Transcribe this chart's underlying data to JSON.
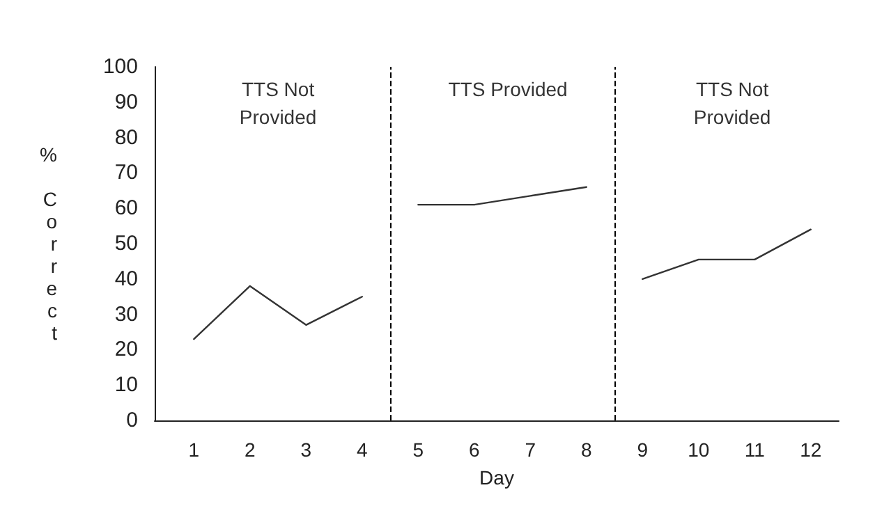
{
  "chart_data": {
    "type": "line",
    "xlabel": "Day",
    "ylabel": "% Correct",
    "xlim": [
      0.3,
      12.5
    ],
    "xticks": [
      1,
      2,
      3,
      4,
      5,
      6,
      7,
      8,
      9,
      10,
      11,
      12
    ],
    "ylim": [
      0,
      100
    ],
    "yticks": [
      0,
      10,
      20,
      30,
      40,
      50,
      60,
      70,
      80,
      90,
      100
    ],
    "grid": false,
    "marker": "none",
    "line_style": "solid",
    "series": [
      {
        "color": "#333333",
        "x": [
          1,
          2,
          3,
          4
        ],
        "values": [
          23,
          38,
          27,
          35
        ]
      },
      {
        "color": "#333333",
        "x": [
          5,
          6,
          7,
          8
        ],
        "values": [
          61,
          61,
          63.5,
          66
        ]
      },
      {
        "color": "#333333",
        "x": [
          9,
          10,
          11,
          12
        ],
        "values": [
          40,
          45.5,
          45.5,
          54
        ]
      }
    ],
    "ref_lines": [
      {
        "axis": "x",
        "value": 4.5,
        "line_style": "dashed",
        "color": "#000000"
      },
      {
        "axis": "x",
        "value": 8.5,
        "line_style": "dashed",
        "color": "#000000"
      }
    ],
    "annotations": [
      "TTS Not\nProvided",
      "TTS Provided",
      "TTS Not\nProvided"
    ]
  }
}
